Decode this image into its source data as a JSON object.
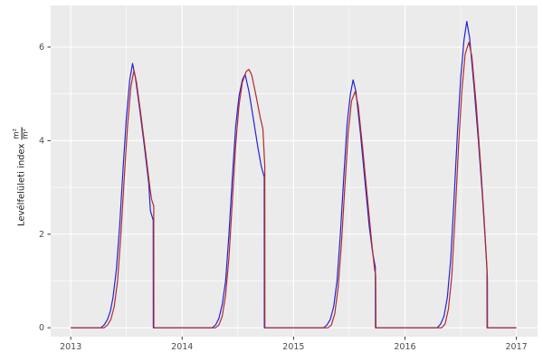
{
  "figure": {
    "ylabel_main": "Levélfelületi index",
    "ylabel_frac_num": "m²",
    "ylabel_frac_den": "m²"
  },
  "chart_data": {
    "type": "line",
    "title": "",
    "xlabel": "",
    "ylabel": "Levélfelületi index m²/m²",
    "xlim": [
      2012.82,
      2017.19
    ],
    "ylim": [
      -0.19,
      6.89
    ],
    "x_ticks": [
      2013,
      2014,
      2015,
      2016,
      2017
    ],
    "x_tick_labels": [
      "2013",
      "2014",
      "2015",
      "2016",
      "2017"
    ],
    "y_ticks": [
      0,
      2,
      4,
      6
    ],
    "y_tick_labels": [
      "0",
      "2",
      "4",
      "6"
    ],
    "x_minor": [
      2013.5,
      2014.5,
      2015.5,
      2016.5
    ],
    "y_minor": [
      1,
      3,
      5
    ],
    "grid": true,
    "legend": "none",
    "colors": {
      "panel_bg": "#EBEBEB",
      "grid": "#FFFFFF",
      "tick_text": "#4d4d4d",
      "tick_mark": "#333333",
      "series_blue": "#2222D6",
      "series_red": "#B22A2A"
    },
    "series": [
      {
        "name": "series-blue",
        "color": "#2222D6",
        "points": [
          [
            2013.0,
            0
          ],
          [
            2013.27,
            0
          ],
          [
            2013.3,
            0.06
          ],
          [
            2013.33,
            0.18
          ],
          [
            2013.355,
            0.35
          ],
          [
            2013.38,
            0.65
          ],
          [
            2013.41,
            1.25
          ],
          [
            2013.44,
            2.2
          ],
          [
            2013.47,
            3.4
          ],
          [
            2013.5,
            4.5
          ],
          [
            2013.53,
            5.3
          ],
          [
            2013.555,
            5.65
          ],
          [
            2013.58,
            5.35
          ],
          [
            2013.62,
            4.65
          ],
          [
            2013.66,
            3.9
          ],
          [
            2013.7,
            3.1
          ],
          [
            2013.715,
            2.5
          ],
          [
            2013.74,
            2.3
          ],
          [
            2013.741,
            0
          ],
          [
            2014.27,
            0
          ],
          [
            2014.3,
            0.06
          ],
          [
            2014.33,
            0.2
          ],
          [
            2014.36,
            0.5
          ],
          [
            2014.39,
            1.0
          ],
          [
            2014.42,
            2.0
          ],
          [
            2014.45,
            3.2
          ],
          [
            2014.48,
            4.3
          ],
          [
            2014.51,
            4.95
          ],
          [
            2014.54,
            5.3
          ],
          [
            2014.565,
            5.42
          ],
          [
            2014.6,
            5.05
          ],
          [
            2014.64,
            4.45
          ],
          [
            2014.68,
            3.85
          ],
          [
            2014.71,
            3.45
          ],
          [
            2014.737,
            3.22
          ],
          [
            2014.738,
            0
          ],
          [
            2015.27,
            0
          ],
          [
            2015.3,
            0.06
          ],
          [
            2015.33,
            0.18
          ],
          [
            2015.36,
            0.45
          ],
          [
            2015.39,
            1.0
          ],
          [
            2015.42,
            2.0
          ],
          [
            2015.45,
            3.2
          ],
          [
            2015.48,
            4.35
          ],
          [
            2015.51,
            5.0
          ],
          [
            2015.535,
            5.3
          ],
          [
            2015.56,
            5.05
          ],
          [
            2015.6,
            4.15
          ],
          [
            2015.64,
            3.15
          ],
          [
            2015.68,
            2.15
          ],
          [
            2015.71,
            1.6
          ],
          [
            2015.734,
            1.3
          ],
          [
            2015.735,
            0
          ],
          [
            2016.29,
            0
          ],
          [
            2016.32,
            0.08
          ],
          [
            2016.35,
            0.25
          ],
          [
            2016.38,
            0.65
          ],
          [
            2016.41,
            1.45
          ],
          [
            2016.44,
            2.75
          ],
          [
            2016.47,
            4.15
          ],
          [
            2016.5,
            5.35
          ],
          [
            2016.53,
            6.15
          ],
          [
            2016.555,
            6.55
          ],
          [
            2016.58,
            6.2
          ],
          [
            2016.62,
            5.15
          ],
          [
            2016.66,
            3.95
          ],
          [
            2016.695,
            2.8
          ],
          [
            2016.72,
            1.9
          ],
          [
            2016.736,
            1.25
          ],
          [
            2016.737,
            0
          ],
          [
            2017.0,
            0
          ]
        ]
      },
      {
        "name": "series-red",
        "color": "#B22A2A",
        "points": [
          [
            2013.0,
            0
          ],
          [
            2013.3,
            0
          ],
          [
            2013.33,
            0.06
          ],
          [
            2013.36,
            0.18
          ],
          [
            2013.39,
            0.45
          ],
          [
            2013.42,
            1.0
          ],
          [
            2013.45,
            2.0
          ],
          [
            2013.48,
            3.2
          ],
          [
            2013.51,
            4.3
          ],
          [
            2013.54,
            5.15
          ],
          [
            2013.567,
            5.5
          ],
          [
            2013.59,
            5.25
          ],
          [
            2013.63,
            4.55
          ],
          [
            2013.67,
            3.8
          ],
          [
            2013.71,
            3.0
          ],
          [
            2013.725,
            2.75
          ],
          [
            2013.745,
            2.6
          ],
          [
            2013.746,
            0
          ],
          [
            2014.3,
            0
          ],
          [
            2014.33,
            0.06
          ],
          [
            2014.36,
            0.25
          ],
          [
            2014.39,
            0.7
          ],
          [
            2014.42,
            1.5
          ],
          [
            2014.45,
            2.7
          ],
          [
            2014.48,
            3.9
          ],
          [
            2014.51,
            4.75
          ],
          [
            2014.54,
            5.25
          ],
          [
            2014.575,
            5.48
          ],
          [
            2014.6,
            5.52
          ],
          [
            2014.625,
            5.4
          ],
          [
            2014.66,
            5.0
          ],
          [
            2014.7,
            4.5
          ],
          [
            2014.725,
            4.25
          ],
          [
            2014.742,
            3.45
          ],
          [
            2014.743,
            0
          ],
          [
            2015.31,
            0
          ],
          [
            2015.34,
            0.06
          ],
          [
            2015.37,
            0.3
          ],
          [
            2015.4,
            0.85
          ],
          [
            2015.43,
            1.8
          ],
          [
            2015.46,
            3.0
          ],
          [
            2015.49,
            4.15
          ],
          [
            2015.52,
            4.85
          ],
          [
            2015.553,
            5.05
          ],
          [
            2015.58,
            4.75
          ],
          [
            2015.62,
            3.85
          ],
          [
            2015.66,
            2.85
          ],
          [
            2015.7,
            1.85
          ],
          [
            2015.727,
            1.25
          ],
          [
            2015.737,
            1.12
          ],
          [
            2015.738,
            0.85
          ],
          [
            2015.739,
            0
          ],
          [
            2016.33,
            0
          ],
          [
            2016.36,
            0.08
          ],
          [
            2016.39,
            0.4
          ],
          [
            2016.42,
            1.1
          ],
          [
            2016.45,
            2.4
          ],
          [
            2016.48,
            3.85
          ],
          [
            2016.51,
            5.05
          ],
          [
            2016.54,
            5.85
          ],
          [
            2016.573,
            6.1
          ],
          [
            2016.6,
            5.8
          ],
          [
            2016.64,
            4.75
          ],
          [
            2016.68,
            3.45
          ],
          [
            2016.71,
            2.35
          ],
          [
            2016.73,
            1.5
          ],
          [
            2016.739,
            1.1
          ],
          [
            2016.74,
            1.02
          ],
          [
            2016.741,
            0
          ],
          [
            2017.0,
            0
          ]
        ]
      }
    ]
  }
}
